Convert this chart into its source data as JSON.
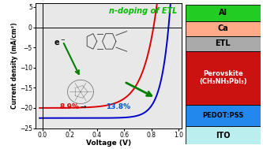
{
  "title": "n-doping of ETL",
  "xlabel": "Voltage (V)",
  "ylabel": "Current density (mA/cm²)",
  "xlim": [
    -0.05,
    1.02
  ],
  "ylim": [
    -25,
    6
  ],
  "xticks": [
    0.0,
    0.2,
    0.4,
    0.6,
    0.8,
    1.0
  ],
  "yticks": [
    5,
    0,
    -5,
    -10,
    -15,
    -20,
    -25
  ],
  "red_jsc": -20.0,
  "red_voc": 0.815,
  "blue_jsc": -22.5,
  "blue_voc": 0.925,
  "label_red": "8.9%",
  "label_blue": "13.8%",
  "label_red_color": "#dd0000",
  "label_blue_color": "#0055cc",
  "curve_red_color": "#dd0000",
  "curve_blue_color": "#0000cc",
  "bg_color": "#e8e8e8",
  "layers": [
    {
      "label": "Al",
      "color": "#22cc22",
      "text_color": "black",
      "fsize": 7
    },
    {
      "label": "Ca",
      "color": "#ffaa88",
      "text_color": "black",
      "fsize": 7
    },
    {
      "label": "ETL",
      "color": "#aaaaaa",
      "text_color": "black",
      "fsize": 7
    },
    {
      "label": "Perovskite\n(CH₃NH₃PbI₃)",
      "color": "#cc1111",
      "text_color": "white",
      "fsize": 6
    },
    {
      "label": "PEDOT:PSS",
      "color": "#2288ee",
      "text_color": "black",
      "fsize": 6
    },
    {
      "label": "ITO",
      "color": "#bbeeee",
      "text_color": "black",
      "fsize": 7
    }
  ],
  "layer_heights": [
    0.1,
    0.09,
    0.09,
    0.32,
    0.13,
    0.11
  ]
}
